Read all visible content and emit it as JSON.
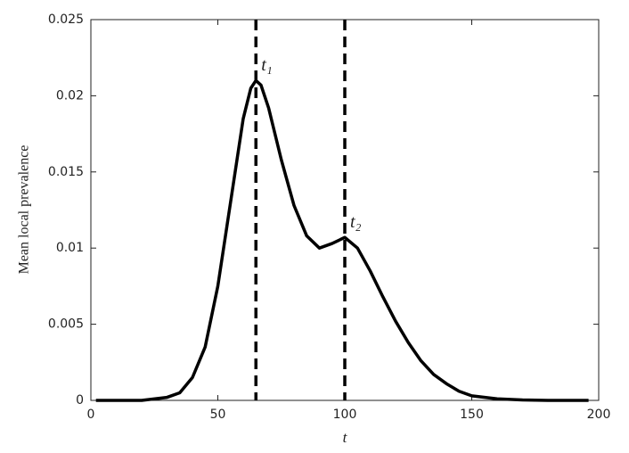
{
  "chart_data": {
    "type": "line",
    "xlabel": "t",
    "ylabel": "Mean local prevalence",
    "x": [
      2,
      20,
      30,
      35,
      40,
      45,
      50,
      55,
      60,
      63,
      65,
      67,
      70,
      75,
      80,
      85,
      90,
      95,
      100,
      105,
      110,
      115,
      120,
      125,
      130,
      135,
      140,
      145,
      150,
      160,
      170,
      180,
      196
    ],
    "series": [
      {
        "color": "#000000",
        "values": [
          0,
          0,
          0.0002,
          0.0005,
          0.0015,
          0.0035,
          0.0075,
          0.013,
          0.0185,
          0.0205,
          0.021,
          0.0207,
          0.0192,
          0.0158,
          0.0128,
          0.0108,
          0.01,
          0.0103,
          0.0107,
          0.01,
          0.0085,
          0.0068,
          0.0052,
          0.0038,
          0.0026,
          0.0017,
          0.0011,
          0.0006,
          0.0003,
          0.0001,
          3e-05,
          0,
          0
        ]
      }
    ],
    "vlines": [
      65,
      100
    ],
    "vline_labels": [
      "t₁",
      "t₂"
    ],
    "xlim": [
      0,
      200
    ],
    "xticks": [
      0,
      50,
      100,
      150,
      200
    ],
    "ylim": [
      0,
      0.025
    ],
    "yticks": [
      0,
      0.005,
      0.01,
      0.015,
      0.02,
      0.025
    ]
  }
}
